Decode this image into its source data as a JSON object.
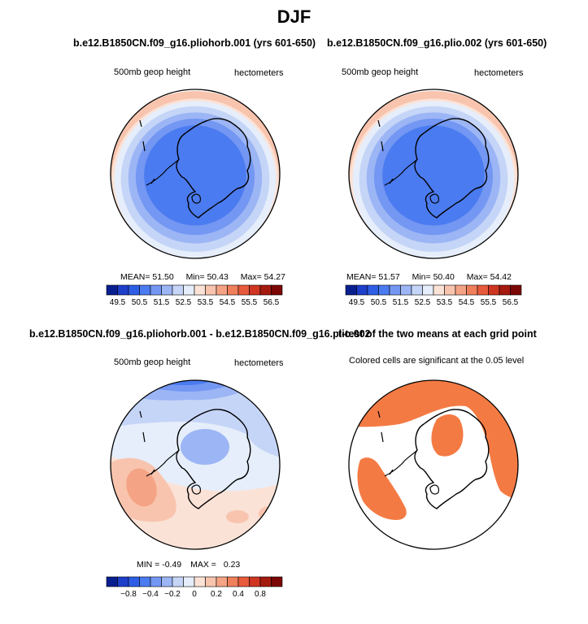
{
  "figure": {
    "title": "DJF"
  },
  "chart_data": [
    {
      "type": "heatmap",
      "id": "p1",
      "title": "b.e12.B1850CN.f09_g16.pliohorb.001 (yrs 601-650)",
      "left_label": "500mb geop height",
      "right_label": "hectometers",
      "stats": {
        "mean_label": "MEAN=",
        "mean": "51.50",
        "min_label": "Min=",
        "min": "50.43",
        "max_label": "Max=",
        "max": "54.27"
      },
      "colorbar": {
        "colors": [
          "#0a1f8f",
          "#1d3fc9",
          "#2e5ee6",
          "#4b7bf0",
          "#7397f2",
          "#9cb5f5",
          "#c5d5f7",
          "#e6eefb",
          "#fbe2d6",
          "#f8c4ae",
          "#f4a384",
          "#f07f5b",
          "#e85a3c",
          "#cf3521",
          "#a51a0e",
          "#7a0606"
        ],
        "labels": [
          "49.5",
          "50.5",
          "51.5",
          "52.5",
          "53.5",
          "54.5",
          "55.5",
          "56.5"
        ]
      },
      "field": [
        {
          "level": 53.5,
          "ry": 1.0
        },
        {
          "level": 53.0,
          "ry": 0.9
        },
        {
          "level": 52.5,
          "ry": 0.87
        },
        {
          "level": 52.0,
          "ry": 0.8
        },
        {
          "level": 51.5,
          "ry": 0.72
        },
        {
          "level": 51.0,
          "ry": 0.64
        },
        {
          "level": 50.5,
          "ry": 0.55
        }
      ]
    },
    {
      "type": "heatmap",
      "id": "p2",
      "title": "b.e12.B1850CN.f09_g16.plio.002 (yrs 601-650)",
      "left_label": "500mb geop height",
      "right_label": "hectometers",
      "stats": {
        "mean_label": "MEAN=",
        "mean": "51.57",
        "min_label": "Min=",
        "min": "50.40",
        "max_label": "Max=",
        "max": "54.42"
      },
      "colorbar": {
        "colors": [
          "#0a1f8f",
          "#1d3fc9",
          "#2e5ee6",
          "#4b7bf0",
          "#7397f2",
          "#9cb5f5",
          "#c5d5f7",
          "#e6eefb",
          "#fbe2d6",
          "#f8c4ae",
          "#f4a384",
          "#f07f5b",
          "#e85a3c",
          "#cf3521",
          "#a51a0e",
          "#7a0606"
        ],
        "labels": [
          "49.5",
          "50.5",
          "51.5",
          "52.5",
          "53.5",
          "54.5",
          "55.5",
          "56.5"
        ]
      },
      "field": [
        {
          "level": 53.5,
          "ry": 1.0
        },
        {
          "level": 53.0,
          "ry": 0.9
        },
        {
          "level": 52.5,
          "ry": 0.87
        },
        {
          "level": 52.0,
          "ry": 0.8
        },
        {
          "level": 51.5,
          "ry": 0.72
        },
        {
          "level": 51.0,
          "ry": 0.64
        },
        {
          "level": 50.5,
          "ry": 0.55
        }
      ]
    },
    {
      "type": "heatmap",
      "id": "p3",
      "title": "b.e12.B1850CN.f09_g16.pliohorb.001 - b.e12.B1850CN.f09_g16.plio.002",
      "left_label": "500mb geop height",
      "right_label": "hectometers",
      "stats": {
        "min_label": "MIN =",
        "min": "-0.49",
        "max_label": "MAX =",
        "max": "0.23"
      },
      "colorbar": {
        "colors": [
          "#0a1f8f",
          "#1d3fc9",
          "#2e5ee6",
          "#4b7bf0",
          "#7397f2",
          "#9cb5f5",
          "#c5d5f7",
          "#e6eefb",
          "#fbe2d6",
          "#f8c4ae",
          "#f4a384",
          "#f07f5b",
          "#e85a3c",
          "#cf3521",
          "#a51a0e",
          "#7a0606"
        ],
        "labels": [
          "−0.8",
          "−0.4",
          "−0.2",
          "0",
          "0.2",
          "0.4",
          "0.8"
        ]
      }
    },
    {
      "type": "heatmap",
      "id": "p4",
      "title": "t-test of the two means at each grid point",
      "left_label": "Colored cells are significant at the 0.05 level",
      "fill_color": "#f47a44"
    }
  ]
}
